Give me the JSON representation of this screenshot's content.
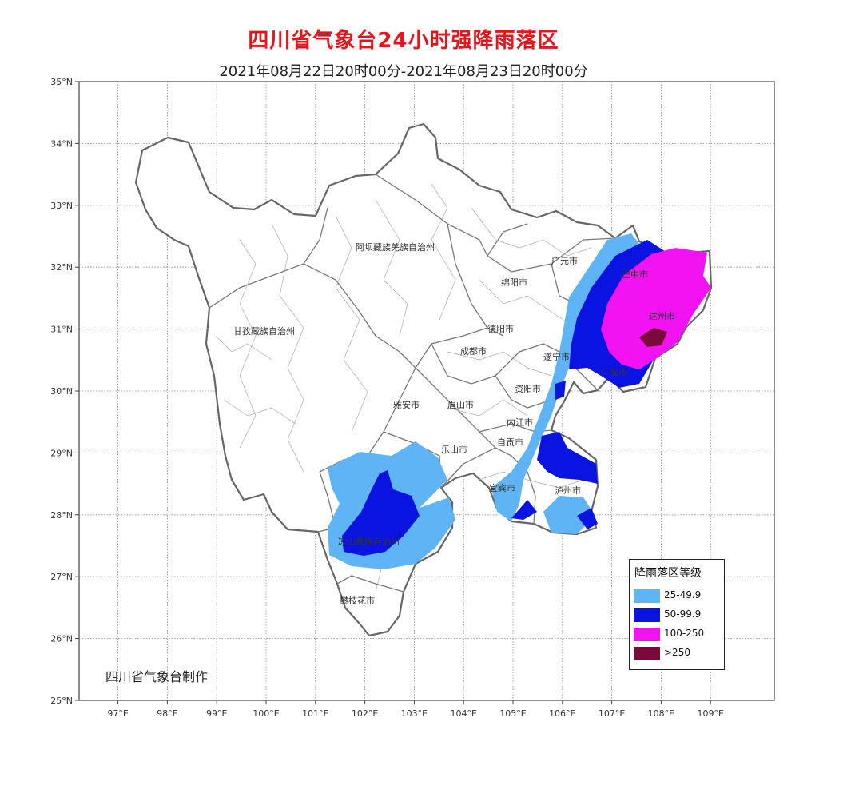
{
  "title": "四川省气象台24小时强降雨落区",
  "subtitle": "2021年08月22日20时00分-2021年08月23日20时00分",
  "credit": "四川省气象台制作",
  "axes": {
    "lat_labels": [
      "35°N",
      "34°N",
      "33°N",
      "32°N",
      "31°N",
      "30°N",
      "29°N",
      "28°N",
      "27°N",
      "26°N",
      "25°N"
    ],
    "lon_labels": [
      "97°E",
      "98°E",
      "99°E",
      "100°E",
      "101°E",
      "102°E",
      "103°E",
      "104°E",
      "105°E",
      "106°E",
      "107°E",
      "108°E",
      "109°E"
    ],
    "grid": "dotted"
  },
  "cities": {
    "aba": "阿坝藏族羌族自治州",
    "ganzi": "甘孜藏族自治州",
    "guangyuan": "广元市",
    "mianyang": "绵阳市",
    "bazhong": "巴中市",
    "dazhou": "达州市",
    "deyang": "德阳市",
    "chengdu": "成都市",
    "suining": "遂宁市",
    "guangan": "广安市",
    "ziyang": "资阳市",
    "yaan": "雅安市",
    "meishan": "眉山市",
    "neijiang": "内江市",
    "zigong": "自贡市",
    "leshan": "乐山市",
    "yibin": "宜宾市",
    "luzhou": "泸州市",
    "liangshan": "凉山彝族自治州",
    "panzhihua": "攀枝花市"
  },
  "legend": {
    "title": "降雨落区等级",
    "items": [
      {
        "label": "25-49.9",
        "color": "#5eb4f5"
      },
      {
        "label": "50-99.9",
        "color": "#0a14e0"
      },
      {
        "label": "100-250",
        "color": "#f213f2"
      },
      {
        "label": ">250",
        "color": "#7a0a3a"
      }
    ]
  }
}
